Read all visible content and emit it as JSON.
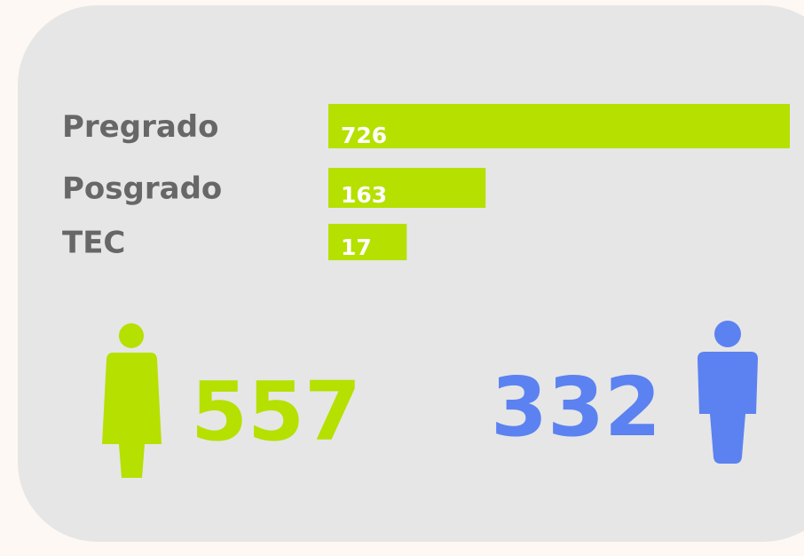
{
  "chart_data": {
    "type": "bar",
    "orientation": "horizontal",
    "categories": [
      "Pregrado",
      "Posgrado",
      "TEC"
    ],
    "values": [
      726,
      163,
      17
    ],
    "color": "#b5e000"
  },
  "gender": {
    "female": {
      "value": 557,
      "color": "#b5e000"
    },
    "male": {
      "value": 332,
      "color": "#5b82f0"
    }
  }
}
